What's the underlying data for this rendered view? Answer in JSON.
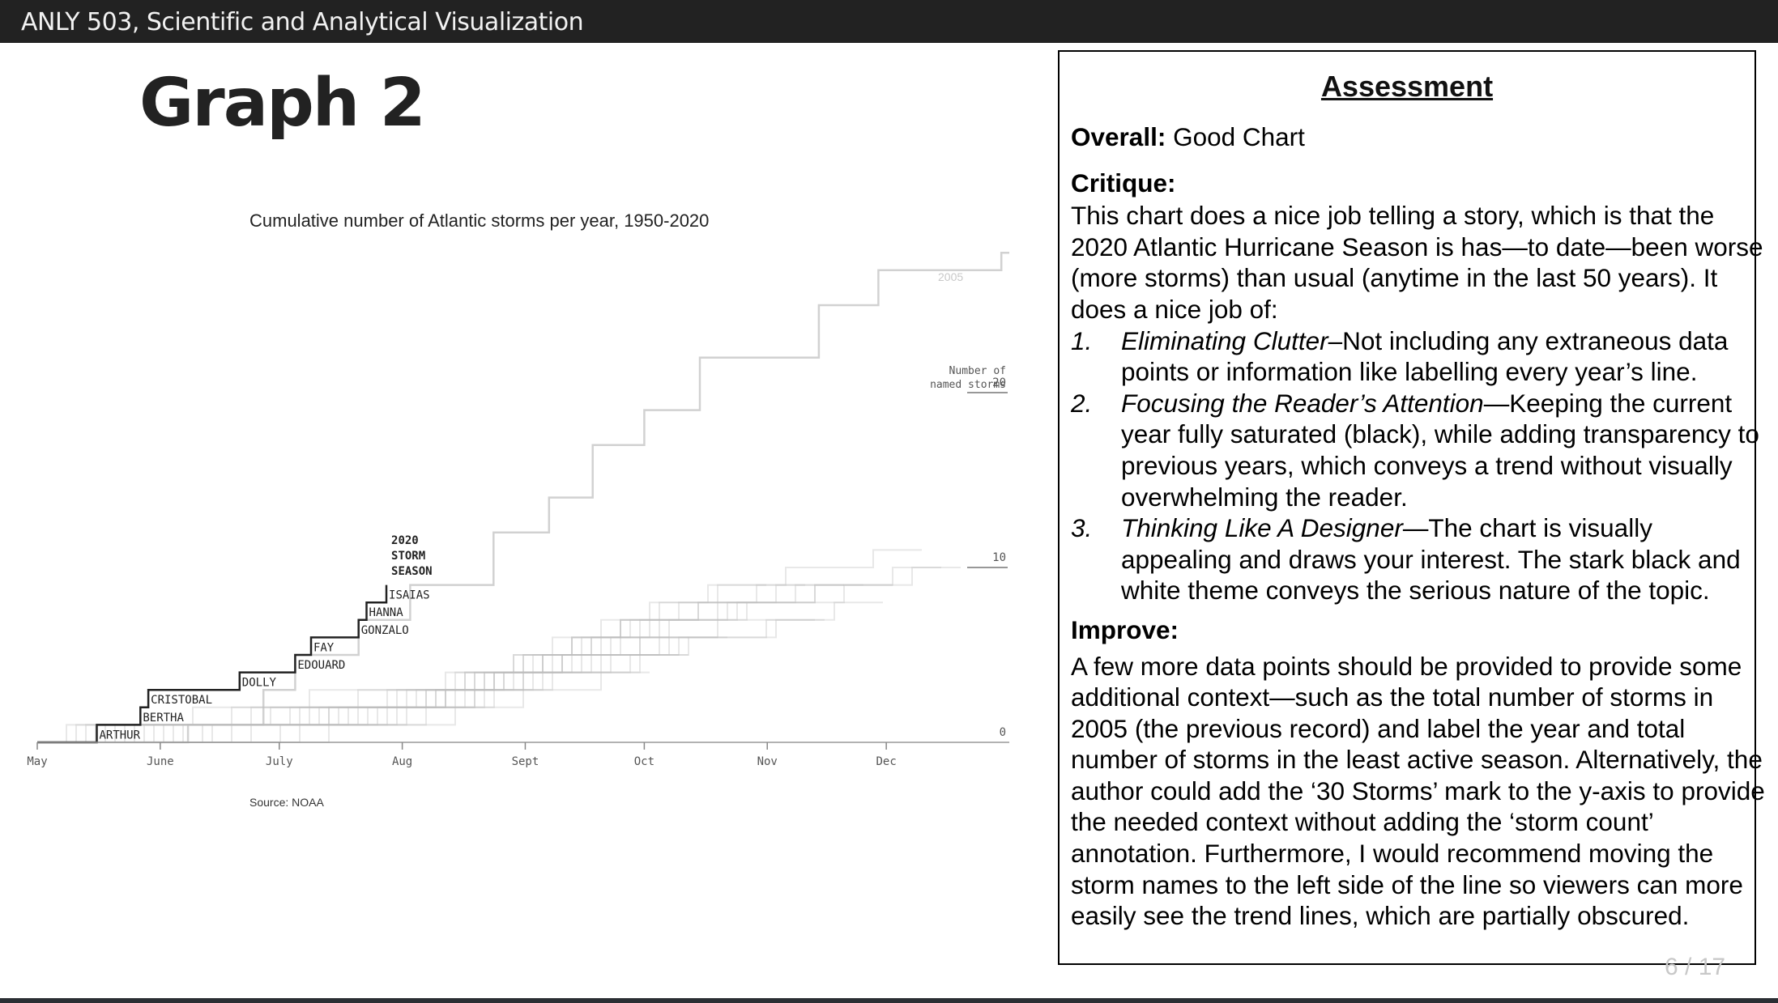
{
  "header": {
    "course_title": "ANLY 503, Scientific and Analytical Visualization"
  },
  "slide": {
    "title": "Graph 2",
    "page_number": "6 / 17"
  },
  "chart_data": {
    "type": "line",
    "title": "Cumulative number of Atlantic storms per year, 1950-2020",
    "source": "Source: NOAA",
    "x_months": [
      "May",
      "June",
      "July",
      "Aug",
      "Sept",
      "Oct",
      "Nov",
      "Dec"
    ],
    "y_label": "Number of\nnamed storms",
    "y_ticks": [
      0,
      10,
      20
    ],
    "ylim": [
      0,
      30
    ],
    "highlight_year_label": [
      "2020",
      "STORM",
      "SEASON"
    ],
    "background_year_label": "2005",
    "series": [
      {
        "name": "2020",
        "steps": [
          {
            "date": "May 16",
            "count": 1,
            "storm": "ARTHUR"
          },
          {
            "date": "May 27",
            "count": 2,
            "storm": "BERTHA"
          },
          {
            "date": "May 29",
            "count": 3,
            "storm": "CRISTOBAL"
          },
          {
            "date": "June 21",
            "count": 4,
            "storm": "DOLLY"
          },
          {
            "date": "July 5",
            "count": 5,
            "storm": "EDOUARD"
          },
          {
            "date": "July 9",
            "count": 6,
            "storm": "FAY"
          },
          {
            "date": "July 21",
            "count": 7,
            "storm": "GONZALO"
          },
          {
            "date": "July 23",
            "count": 8,
            "storm": "HANNA"
          },
          {
            "date": "July 28",
            "count": 9,
            "storm": "ISAIAS"
          }
        ]
      },
      {
        "name": "2005",
        "steps": [
          {
            "date": "June 8",
            "count": 1
          },
          {
            "date": "June 27",
            "count": 3
          },
          {
            "date": "July 5",
            "count": 5
          },
          {
            "date": "July 21",
            "count": 7
          },
          {
            "date": "Aug 3",
            "count": 9
          },
          {
            "date": "Aug 24",
            "count": 12
          },
          {
            "date": "Sept 7",
            "count": 14
          },
          {
            "date": "Sept 18",
            "count": 17
          },
          {
            "date": "Oct 1",
            "count": 19
          },
          {
            "date": "Oct 15",
            "count": 22
          },
          {
            "date": "Nov 14",
            "count": 25
          },
          {
            "date": "Nov 29",
            "count": 27
          },
          {
            "date": "Dec 30",
            "count": 28
          }
        ]
      }
    ],
    "background_years": {
      "color": "#bdbdbd",
      "opacity": 0.35,
      "series": [
        [
          0.06,
          0.16,
          0.28,
          0.44,
          0.54,
          0.64,
          0.76
        ],
        [
          0.05,
          0.2,
          0.33,
          0.42,
          0.52,
          0.6
        ],
        [
          0.1,
          0.3,
          0.4,
          0.47,
          0.55,
          0.62,
          0.7,
          0.82
        ],
        [
          0.18,
          0.36,
          0.45,
          0.5,
          0.57,
          0.66
        ],
        [
          0.03,
          0.28,
          0.42,
          0.48,
          0.53,
          0.58,
          0.64,
          0.72,
          0.8
        ],
        [
          0.12,
          0.3,
          0.41,
          0.46,
          0.51,
          0.56,
          0.6,
          0.68
        ],
        [
          0.25,
          0.38,
          0.45,
          0.52,
          0.62
        ],
        [
          0.08,
          0.22,
          0.37,
          0.43,
          0.49,
          0.55,
          0.61,
          0.7,
          0.78
        ],
        [
          0.15,
          0.33,
          0.44,
          0.5,
          0.59
        ],
        [
          0.2,
          0.35,
          0.42,
          0.47,
          0.52,
          0.57,
          0.63,
          0.71,
          0.8,
          0.9
        ],
        [
          0.04,
          0.26,
          0.39,
          0.46,
          0.54,
          0.65
        ],
        [
          0.11,
          0.29,
          0.4,
          0.45,
          0.5,
          0.55,
          0.6,
          0.66,
          0.74
        ],
        [
          0.3,
          0.43,
          0.5,
          0.58
        ],
        [
          0.09,
          0.24,
          0.36,
          0.44,
          0.49,
          0.53,
          0.58,
          0.63,
          0.69,
          0.77,
          0.86
        ],
        [
          0.14,
          0.31,
          0.41,
          0.48,
          0.56,
          0.67,
          0.75
        ],
        [
          0.22,
          0.37,
          0.46,
          0.51,
          0.58,
          0.62
        ],
        [
          0.07,
          0.27,
          0.38,
          0.45,
          0.5,
          0.55,
          0.6,
          0.64,
          0.7
        ],
        [
          0.17,
          0.34,
          0.43,
          0.49,
          0.54,
          0.59,
          0.65,
          0.73,
          0.83
        ],
        [
          0.27,
          0.4,
          0.47,
          0.53,
          0.61
        ],
        [
          0.13,
          0.32,
          0.42,
          0.47,
          0.52,
          0.57,
          0.62,
          0.68,
          0.76,
          0.88
        ]
      ]
    }
  },
  "assessment": {
    "heading": "Assessment",
    "overall_label": "Overall:",
    "overall_value": "Good Chart",
    "critique_label": "Critique:",
    "critique_intro": "This chart does a nice job telling a story, which is that the 2020 Atlantic Hurricane Season is has—to date—been worse (more storms) than usual (anytime in the last 50 years). It does a nice job of:",
    "points": [
      {
        "num": "1.",
        "term": "Eliminating Clutter",
        "text": "–Not including any extraneous data points or information like labelling every year’s line."
      },
      {
        "num": "2.",
        "term": "Focusing the Reader’s Attention",
        "text": "—Keeping the current year fully saturated (black), while adding transparency to previous years, which conveys a trend without visually overwhelming the reader."
      },
      {
        "num": "3.",
        "term": "Thinking Like A Designer",
        "text": "—The chart is visually appealing and draws your interest. The stark black and white theme conveys the serious nature of the topic."
      }
    ],
    "improve_label": "Improve:",
    "improve_text": "A few more data points should be provided to provide some additional context—such as the total number of storms in 2005 (the previous record) and label the year and total number of storms in the least active season. Alternatively, the author could add the ‘30 Storms’ mark to the y-axis to provide the needed context without adding the ‘storm count’ annotation. Furthermore, I would recommend moving the storm names to the left side of the line so viewers can more easily see the trend lines, which are partially obscured."
  }
}
